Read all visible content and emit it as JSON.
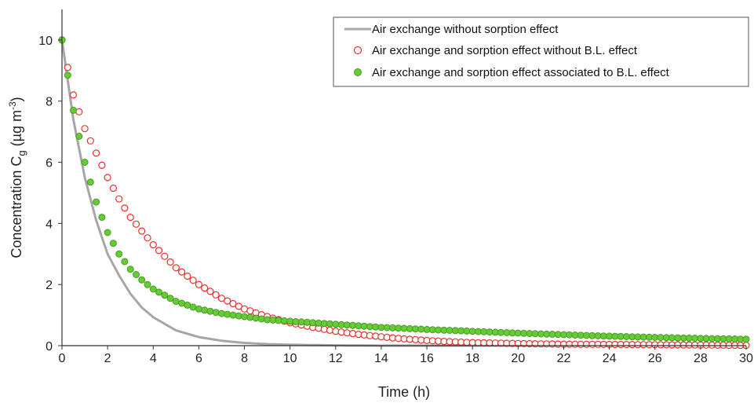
{
  "chart_data": {
    "type": "scatter",
    "xlabel": "Time (h)",
    "ylabel": {
      "prefix": "Concentration C",
      "sub": "g",
      "mid": " (µg m",
      "sup": "-3",
      "suffix": ")"
    },
    "xlim": [
      0,
      30
    ],
    "ylim": [
      0,
      11
    ],
    "x_ticks": [
      0,
      2,
      4,
      6,
      8,
      10,
      12,
      14,
      16,
      18,
      20,
      22,
      24,
      26,
      28,
      30
    ],
    "y_ticks": [
      0,
      2,
      4,
      6,
      8,
      10
    ],
    "grid": false,
    "legend_position": "top-right",
    "series": [
      {
        "name": "Air exchange without sorption effect",
        "style": "line",
        "color": "#a6a6a6",
        "x": [
          0,
          0.5,
          1,
          1.5,
          2,
          2.5,
          3,
          3.5,
          4,
          5,
          6,
          7,
          8,
          9,
          10,
          11,
          12,
          14,
          16,
          18,
          20,
          25,
          30
        ],
        "values": [
          10,
          7.4,
          5.5,
          4.1,
          3.0,
          2.3,
          1.7,
          1.25,
          0.93,
          0.5,
          0.28,
          0.16,
          0.09,
          0.05,
          0.03,
          0.02,
          0.01,
          0.0,
          0.0,
          0.0,
          0.0,
          0.0,
          0.0
        ]
      },
      {
        "name": "Air exchange and sorption effect without B.L. effect",
        "style": "open-circle",
        "color": "#e8302a",
        "x": [
          0,
          0.5,
          1,
          1.5,
          2,
          2.5,
          3,
          4,
          5,
          6,
          7,
          8,
          9,
          10,
          11,
          12,
          13,
          14,
          15,
          16,
          17,
          18,
          20,
          22,
          24,
          26,
          28,
          30
        ],
        "values": [
          10,
          8.2,
          7.1,
          6.3,
          5.5,
          4.8,
          4.2,
          3.3,
          2.55,
          2.0,
          1.55,
          1.2,
          0.95,
          0.75,
          0.6,
          0.47,
          0.37,
          0.29,
          0.22,
          0.17,
          0.13,
          0.1,
          0.07,
          0.05,
          0.04,
          0.03,
          0.02,
          0.01
        ]
      },
      {
        "name": "Air exchange and sorption effect associated to B.L. effect",
        "style": "filled-circle",
        "color": "#66cc33",
        "x": [
          0,
          0.5,
          1,
          1.5,
          2,
          2.5,
          3,
          3.5,
          4,
          5,
          6,
          7,
          8,
          9,
          10,
          12,
          14,
          16,
          18,
          20,
          22,
          24,
          26,
          28,
          30
        ],
        "values": [
          10,
          7.7,
          6.0,
          4.7,
          3.7,
          3.0,
          2.5,
          2.15,
          1.85,
          1.45,
          1.2,
          1.05,
          0.95,
          0.85,
          0.8,
          0.7,
          0.6,
          0.53,
          0.47,
          0.41,
          0.36,
          0.31,
          0.27,
          0.24,
          0.21
        ]
      }
    ]
  }
}
